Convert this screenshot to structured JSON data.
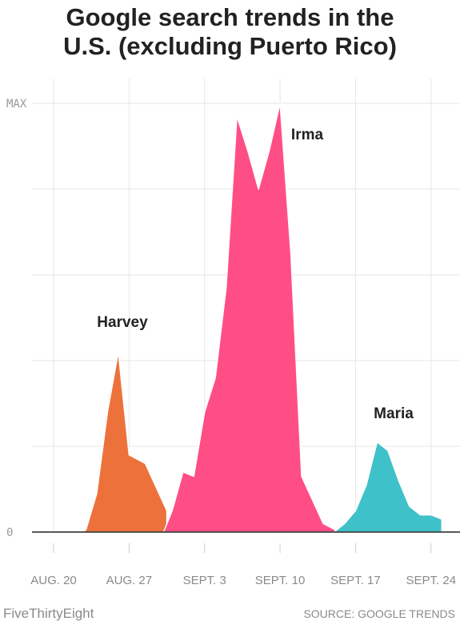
{
  "title_line1": "Google search trends in the",
  "title_line2": "U.S. (excluding Puerto Rico)",
  "footer": {
    "brand": "FiveThirtyEight",
    "source": "SOURCE: GOOGLE TRENDS"
  },
  "chart_data": {
    "type": "area",
    "title": "Google search trends in the U.S. (excluding Puerto Rico)",
    "x_unit": "days since Aug. 20",
    "xlim": [
      0,
      36
    ],
    "ylim": [
      0,
      100
    ],
    "grid": true,
    "y_ticks": [
      {
        "value": 0,
        "label": "0"
      },
      {
        "value": 100,
        "label": "MAX"
      }
    ],
    "x_ticks": [
      {
        "value": 0,
        "label": "AUG. 20"
      },
      {
        "value": 7,
        "label": "AUG. 27"
      },
      {
        "value": 14,
        "label": "SEPT. 3"
      },
      {
        "value": 21,
        "label": "SEPT. 10"
      },
      {
        "value": 28,
        "label": "SEPT. 17"
      },
      {
        "value": 35,
        "label": "SEPT. 24"
      }
    ],
    "series": [
      {
        "name": "Harvey",
        "color": "#ed713a",
        "x": [
          2.6,
          3,
          4,
          5,
          6,
          7,
          8.5,
          10.5
        ],
        "y": [
          0,
          0.5,
          9,
          28,
          42,
          18,
          16,
          5
        ]
      },
      {
        "name": "Irma",
        "color": "#ff4e85",
        "x": [
          10.2,
          11,
          12,
          13,
          14,
          15,
          16,
          17,
          18,
          19,
          20,
          21,
          22,
          23,
          25,
          26.5
        ],
        "y": [
          0,
          5,
          14,
          13,
          28,
          36,
          57,
          97,
          89,
          80,
          89,
          100,
          65,
          13,
          2,
          0
        ]
      },
      {
        "name": "Maria",
        "color": "#3ec1c9",
        "x": [
          25.8,
          26,
          27,
          28,
          29,
          30,
          31,
          32,
          33,
          34,
          35,
          36
        ],
        "y": [
          0,
          0,
          2,
          5,
          11,
          21,
          19,
          12,
          6,
          4,
          4,
          3
        ]
      }
    ]
  }
}
